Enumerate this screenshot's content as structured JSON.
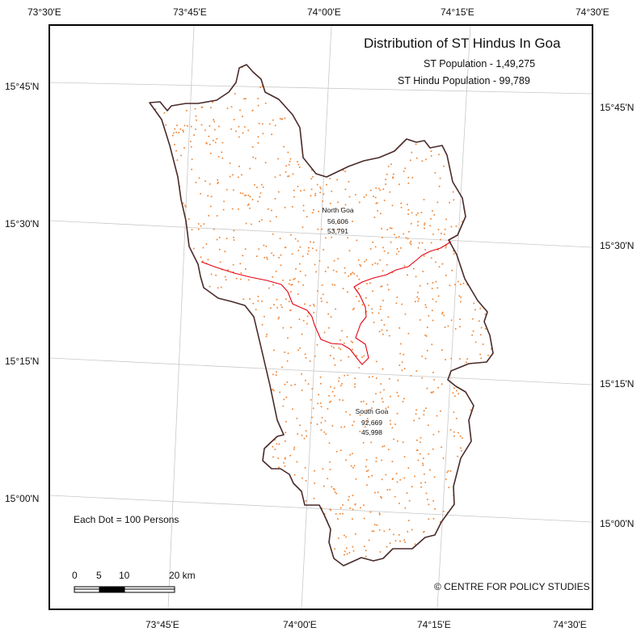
{
  "map": {
    "title": "Distribution of ST Hindus In Goa",
    "st_population_label": "ST Population - 1,49,275",
    "st_hindu_population_label": "ST Hindu Population - 99,789",
    "dot_legend": "Each Dot = 100 Persons",
    "copyright": "© CENTRE FOR POLICY STUDIES",
    "colors": {
      "boundary": "#4a2a2a",
      "district_boundary": "#e3000f",
      "dots": "#f08a3c",
      "graticule": "#c8c8c8"
    },
    "longitude_labels_top": [
      "73°30'E",
      "73°45'E",
      "74°00'E",
      "74°15'E",
      "74°30'E"
    ],
    "longitude_labels_bottom": [
      "73°45'E",
      "74°00'E",
      "74°15'E",
      "74°30'E"
    ],
    "latitude_labels_left": [
      "15°45'N",
      "15°30'N",
      "15°15'N",
      "15°00'N"
    ],
    "latitude_labels_right": [
      "15°45'N",
      "15°30'N",
      "15°15'N",
      "15°00'N"
    ],
    "districts": [
      {
        "name": "North Goa",
        "st_population": "56,606",
        "st_hindu_population": "53,791"
      },
      {
        "name": "South Goa",
        "st_population": "92,669",
        "st_hindu_population": "45,998"
      }
    ],
    "scale_bar": {
      "ticks": [
        "0",
        "5",
        "10",
        "20 km"
      ]
    }
  }
}
